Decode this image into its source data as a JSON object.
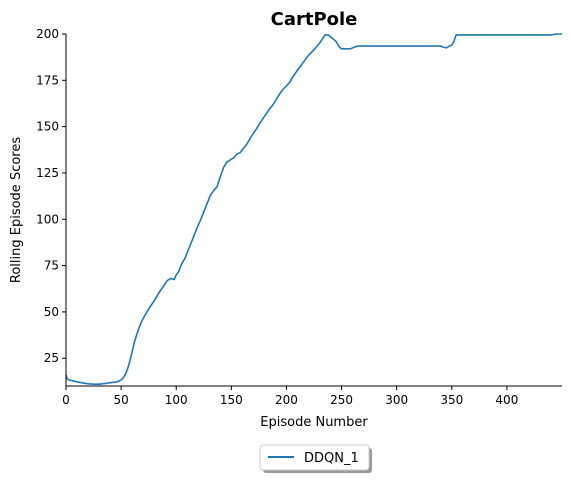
{
  "chart_data": {
    "type": "line",
    "title": "CartPole",
    "xlabel": "Episode Number",
    "ylabel": "Rolling Episode Scores",
    "xlim": [
      0,
      450
    ],
    "ylim": [
      10,
      200
    ],
    "xticks": [
      0,
      50,
      100,
      150,
      200,
      250,
      300,
      350,
      400
    ],
    "yticks": [
      25,
      50,
      75,
      100,
      125,
      150,
      175,
      200
    ],
    "grid": false,
    "legend_position": "bottom-center",
    "series": [
      {
        "name": "DDQN_1",
        "color": "#1f77b4",
        "x": [
          0,
          1,
          3,
          5,
          8,
          12,
          16,
          20,
          25,
          30,
          35,
          40,
          43,
          46,
          48,
          50,
          52,
          54,
          56,
          58,
          60,
          62,
          64,
          66,
          68,
          70,
          73,
          76,
          80,
          84,
          88,
          92,
          95,
          98,
          100,
          102,
          104,
          106,
          108,
          110,
          113,
          116,
          119,
          122,
          125,
          128,
          131,
          134,
          137,
          140,
          143,
          146,
          148,
          150,
          152,
          154,
          156,
          158,
          160,
          162,
          164,
          166,
          168,
          170,
          173,
          176,
          180,
          184,
          188,
          192,
          196,
          200,
          203,
          206,
          210,
          215,
          220,
          225,
          230,
          235,
          238,
          241,
          243,
          245,
          248,
          250,
          252,
          255,
          258,
          262,
          265,
          270,
          280,
          300,
          320,
          340,
          342,
          345,
          348,
          350,
          352,
          353,
          354,
          355,
          360,
          380,
          400,
          420,
          440,
          445,
          450
        ],
        "y": [
          16,
          14,
          13.2,
          12.9,
          12.5,
          12,
          11.6,
          11.2,
          11,
          11,
          11.3,
          11.8,
          12,
          12.2,
          12.6,
          13.3,
          14.5,
          16.5,
          19.5,
          23.5,
          28.5,
          33.5,
          37.5,
          41,
          44,
          46.5,
          49.5,
          52.5,
          56,
          60,
          63.5,
          67,
          68,
          67.5,
          70,
          71.5,
          74.5,
          77,
          79,
          82,
          86.5,
          91,
          95.5,
          99.5,
          104,
          108.5,
          113,
          115.5,
          117.5,
          123,
          128,
          131,
          131.5,
          132.5,
          133,
          134.5,
          135.5,
          136,
          137.5,
          139,
          140.5,
          142.5,
          144.5,
          146.5,
          149,
          152,
          155.5,
          159,
          162,
          166,
          169.5,
          172,
          174,
          177,
          180.5,
          184.5,
          188.5,
          191.5,
          195,
          199.5,
          199.5,
          198,
          197,
          196,
          193,
          192,
          192,
          192,
          192,
          193,
          193.5,
          193.5,
          193.5,
          193.5,
          193.5,
          193.5,
          193,
          192.5,
          193.5,
          194,
          196,
          198,
          199.5,
          199.5,
          199.5,
          199.5,
          199.5,
          199.5,
          199.5,
          200,
          200
        ]
      }
    ]
  }
}
